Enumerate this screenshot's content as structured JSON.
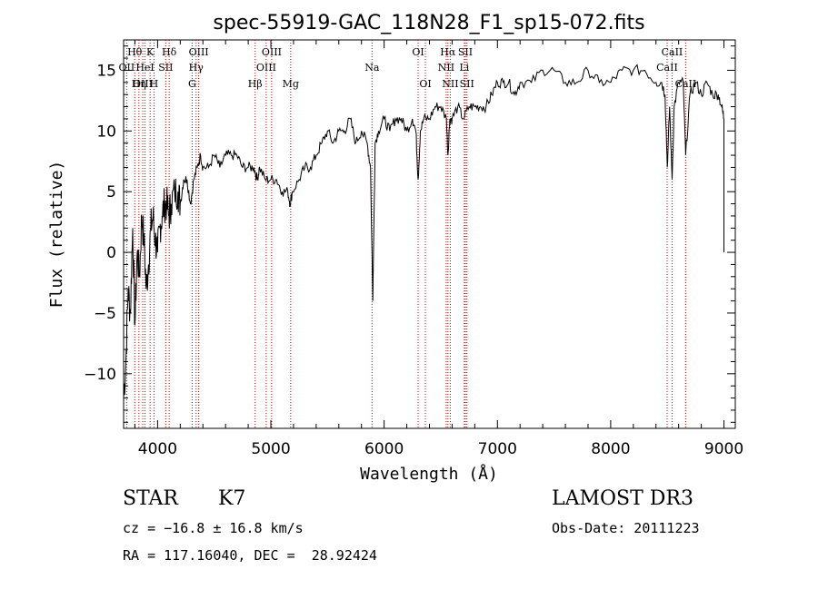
{
  "chart_data": {
    "type": "line",
    "title": "spec-55919-GAC_118N28_F1_sp15-072.fits",
    "xlabel": "Wavelength (Å)",
    "ylabel": "Flux (relative)",
    "xlim": [
      3700,
      9100
    ],
    "ylim": [
      -14.5,
      17.5
    ],
    "x_ticks": [
      4000,
      5000,
      6000,
      7000,
      8000,
      9000
    ],
    "y_ticks": [
      -10,
      -5,
      0,
      5,
      10,
      15
    ],
    "grid": false,
    "line_color": "#000000",
    "marker_color": "#c00000",
    "series": [
      {
        "x": [
          3700,
          3720,
          3740,
          3760,
          3780,
          3800,
          3820,
          3840,
          3860,
          3880,
          3900,
          3920,
          3940,
          3960,
          3980,
          4000,
          4020,
          4040,
          4060,
          4080,
          4100,
          4120,
          4150,
          4180,
          4200,
          4230,
          4260,
          4290,
          4320,
          4350,
          4380,
          4400,
          4450,
          4500,
          4550,
          4600,
          4650,
          4700,
          4750,
          4800,
          4850,
          4880,
          4900,
          4950,
          5000,
          5050,
          5100,
          5150,
          5170,
          5190,
          5250,
          5300,
          5350,
          5400,
          5450,
          5500,
          5550,
          5600,
          5650,
          5700,
          5750,
          5800,
          5850,
          5880,
          5900,
          5920,
          5950,
          6000,
          6050,
          6100,
          6150,
          6200,
          6250,
          6280,
          6300,
          6320,
          6350,
          6400,
          6450,
          6500,
          6550,
          6563,
          6580,
          6600,
          6650,
          6700,
          6750,
          6800,
          6850,
          6900,
          6950,
          7000,
          7050,
          7100,
          7150,
          7200,
          7300,
          7400,
          7500,
          7600,
          7700,
          7800,
          7900,
          8000,
          8100,
          8200,
          8300,
          8400,
          8450,
          8480,
          8500,
          8520,
          8542,
          8560,
          8600,
          8640,
          8662,
          8700,
          8750,
          8800,
          8850,
          8900,
          8950,
          8980,
          9000
        ],
        "values": [
          -12,
          -9,
          -3,
          -5,
          2,
          -6,
          0,
          -2,
          3,
          1,
          -3,
          -1,
          2,
          3,
          1,
          0,
          2,
          3,
          4,
          4,
          3,
          4,
          5,
          5,
          4,
          6,
          6,
          4,
          6,
          7,
          8,
          7,
          7,
          8,
          7,
          8,
          8,
          8,
          7,
          7,
          7,
          6,
          7,
          6,
          6,
          6,
          5,
          5,
          4,
          5,
          6,
          7,
          7,
          8,
          9,
          10,
          9,
          10,
          10,
          11,
          9,
          10,
          9,
          7,
          -4,
          9,
          10,
          11,
          10,
          11,
          11,
          10,
          11,
          10,
          6,
          10,
          11,
          11,
          12,
          12,
          11,
          8,
          11,
          11,
          12,
          11,
          12,
          12,
          12,
          12,
          13,
          14,
          14,
          14,
          13,
          14,
          14,
          15,
          15,
          14,
          14,
          15,
          14,
          14,
          15,
          15,
          15,
          14,
          14,
          13,
          7,
          12,
          6,
          12,
          14,
          14,
          8,
          13,
          14,
          13,
          14,
          13,
          13,
          12,
          11
        ]
      }
    ],
    "spectral_lines": [
      {
        "label": "Hθ",
        "wavelength": 3798,
        "row": 1
      },
      {
        "label": "OII",
        "wavelength": 3727,
        "row": 2
      },
      {
        "label": "OIII",
        "wavelength": 3869,
        "row": 3
      },
      {
        "label": "K",
        "wavelength": 3934,
        "row": 1
      },
      {
        "label": "HeI",
        "wavelength": 3889,
        "row": 2
      },
      {
        "label": "Hη",
        "wavelength": 3835,
        "row": 3
      },
      {
        "label": "H",
        "wavelength": 3968,
        "row": 3
      },
      {
        "label": "SII",
        "wavelength": 4072,
        "row": 2
      },
      {
        "label": "Hδ",
        "wavelength": 4102,
        "row": 1
      },
      {
        "label": "OIII",
        "wavelength": 4363,
        "row": 1
      },
      {
        "label": "Hγ",
        "wavelength": 4340,
        "row": 2
      },
      {
        "label": "G",
        "wavelength": 4305,
        "row": 3
      },
      {
        "label": "Hβ",
        "wavelength": 4861,
        "row": 3
      },
      {
        "label": "OIII",
        "wavelength": 5007,
        "row": 1
      },
      {
        "label": "OIII",
        "wavelength": 4959,
        "row": 2
      },
      {
        "label": "Mg",
        "wavelength": 5175,
        "row": 3
      },
      {
        "label": "Na",
        "wavelength": 5893,
        "row": 2
      },
      {
        "label": "OI",
        "wavelength": 6300,
        "row": 1
      },
      {
        "label": "OI",
        "wavelength": 6364,
        "row": 3
      },
      {
        "label": "Hα",
        "wavelength": 6563,
        "row": 1
      },
      {
        "label": "SII",
        "wavelength": 6717,
        "row": 1
      },
      {
        "label": "NII",
        "wavelength": 6548,
        "row": 2
      },
      {
        "label": "Li",
        "wavelength": 6708,
        "row": 2
      },
      {
        "label": "NII",
        "wavelength": 6584,
        "row": 3
      },
      {
        "label": "SII",
        "wavelength": 6731,
        "row": 3
      },
      {
        "label": "CaII",
        "wavelength": 8542,
        "row": 1
      },
      {
        "label": "CaII",
        "wavelength": 8498,
        "row": 2
      },
      {
        "label": "CaII",
        "wavelength": 8662,
        "row": 3
      }
    ]
  },
  "info": {
    "class": "STAR",
    "subclass": "K7",
    "survey": "LAMOST DR3",
    "redshift": "cz = −16.8 ± 16.8 km/s",
    "obs_date": "Obs-Date: 20111223",
    "coords": "RA = 117.16040, DEC =  28.92424"
  }
}
